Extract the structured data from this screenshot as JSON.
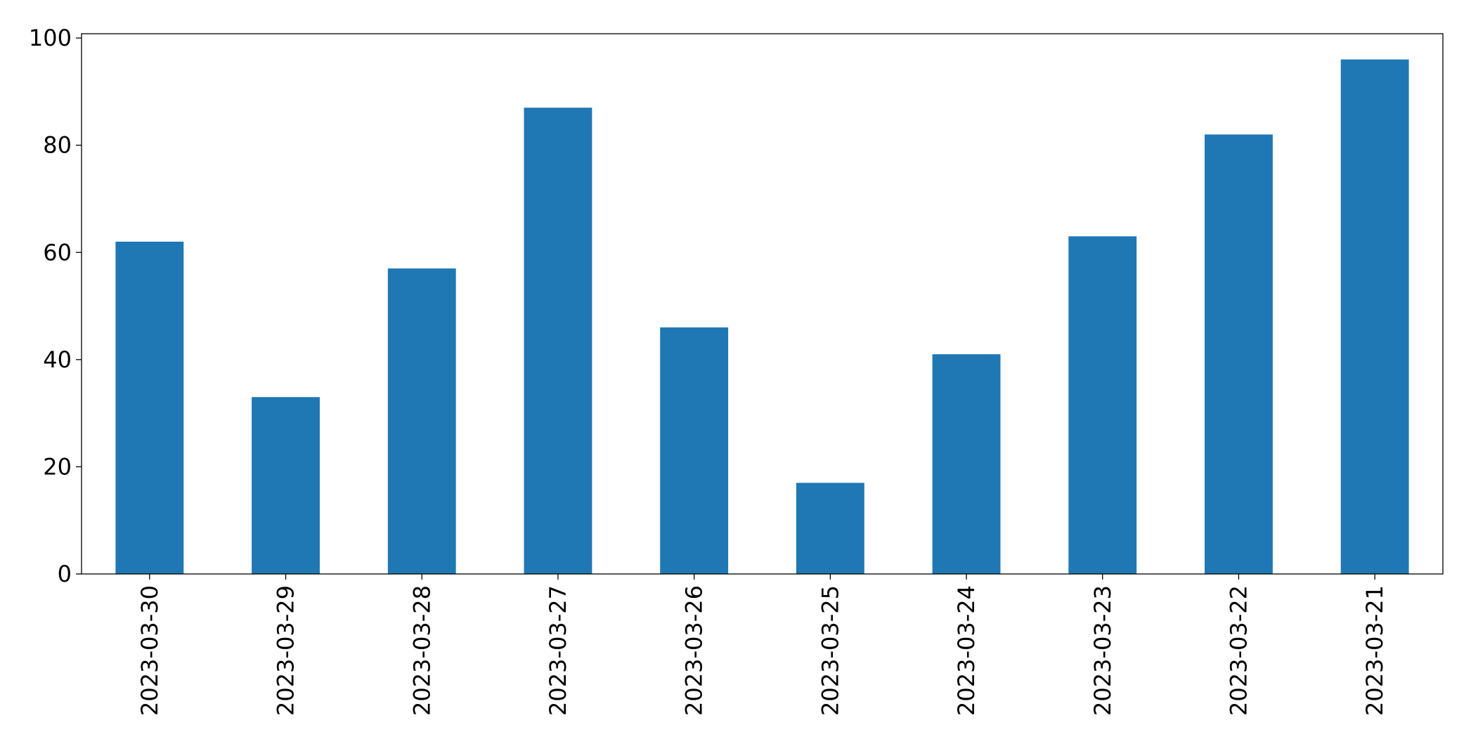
{
  "chart_data": {
    "type": "bar",
    "categories": [
      "2023-03-30",
      "2023-03-29",
      "2023-03-28",
      "2023-03-27",
      "2023-03-26",
      "2023-03-25",
      "2023-03-24",
      "2023-03-23",
      "2023-03-22",
      "2023-03-21"
    ],
    "values": [
      62,
      33,
      57,
      87,
      46,
      17,
      41,
      63,
      82,
      96
    ],
    "color": "#1f77b4",
    "ylim": [
      0,
      100.8
    ],
    "yticks": [
      0,
      20,
      40,
      60,
      80,
      100
    ],
    "grid": false
  }
}
